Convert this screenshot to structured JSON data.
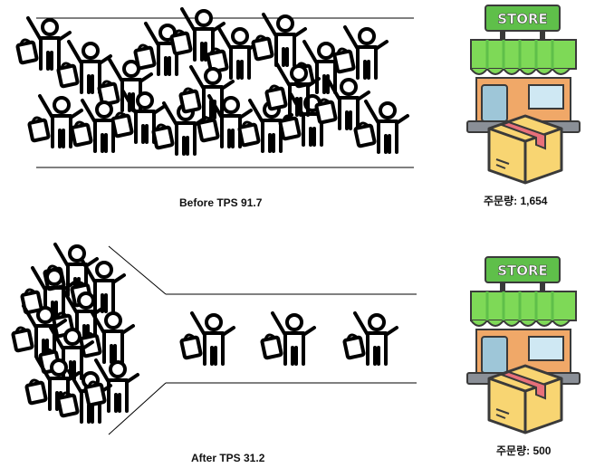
{
  "before": {
    "caption": "Before TPS 91.7",
    "order_label": "주문량: 1,654",
    "store_sign": "STORE"
  },
  "after": {
    "caption": "After TPS 31.2",
    "order_label": "주문량: 500",
    "store_sign": "STORE"
  },
  "icons": {
    "person": "person-with-shopping-bag-icon",
    "store": "store-icon",
    "package": "package-box-icon"
  },
  "colors": {
    "awning_green": "#7ed957",
    "sign_green": "#5fbf4a",
    "wall_orange": "#f0a868",
    "box_yellow": "#f8d572",
    "tape_pink": "#e8707a",
    "window_blue": "#cfe8f3",
    "base_gray": "#8a8f97"
  }
}
